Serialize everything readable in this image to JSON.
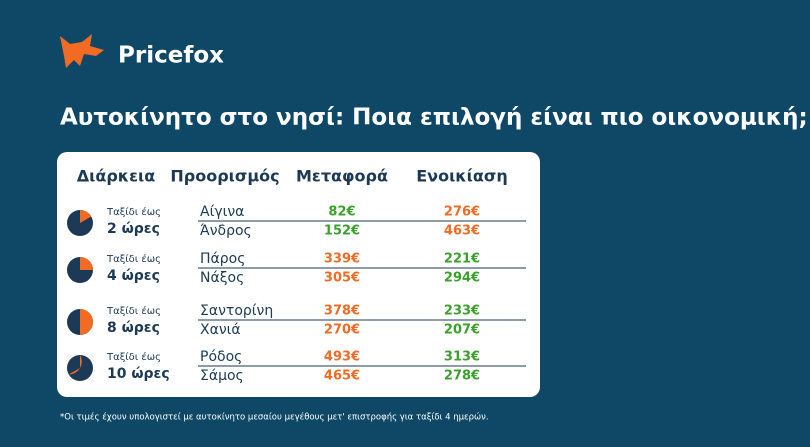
{
  "header": {
    "brand": "Pricefox",
    "title": "Αυτοκίνητο στο νησί: Ποια επιλογή είναι πιο οικονομική;"
  },
  "table": {
    "headers": [
      "Διάρκεια",
      "Προορισμός",
      "Μεταφορά",
      "Ενοικίαση"
    ],
    "groups": [
      {
        "prefix": "Ταξίδι έως",
        "duration": "2 ώρες",
        "rows": [
          {
            "destination": "Αίγινα",
            "transport": "82€",
            "rental": "276€"
          },
          {
            "destination": "Άνδρος",
            "transport": "152€",
            "rental": "463€"
          }
        ]
      },
      {
        "prefix": "Ταξίδι έως",
        "duration": "4 ώρες",
        "rows": [
          {
            "destination": "Πάρος",
            "transport": "339€",
            "rental": "221€"
          },
          {
            "destination": "Νάξος",
            "transport": "305€",
            "rental": "294€"
          }
        ]
      },
      {
        "prefix": "Ταξίδι έως",
        "duration": "8 ώρες",
        "rows": [
          {
            "destination": "Σαντορίνη",
            "transport": "378€",
            "rental": "233€"
          },
          {
            "destination": "Χανιά",
            "transport": "270€",
            "rental": "207€"
          }
        ]
      },
      {
        "prefix": "Ταξίδι έως",
        "duration": "10 ώρες",
        "rows": [
          {
            "destination": "Ρόδος",
            "transport": "493€",
            "rental": "313€"
          },
          {
            "destination": "Σάμος",
            "transport": "465€",
            "rental": "278€"
          }
        ]
      }
    ]
  },
  "footnote": "*Οι τιμές έχουν υπολογιστεί με αυτοκίνητο μεσαίου μεγέθους μετ' επιστροφής για ταξίδι 4 ημερών."
}
